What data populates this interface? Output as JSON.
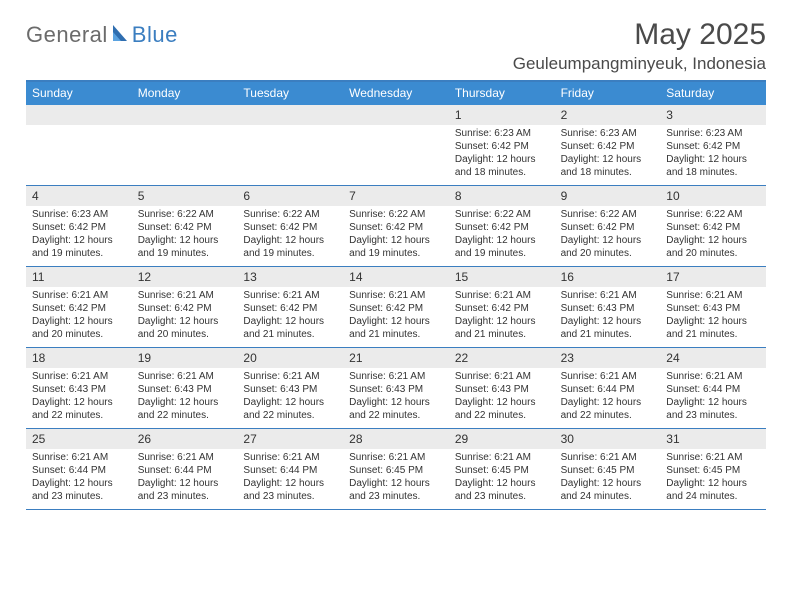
{
  "logo": {
    "text_general": "General",
    "text_blue": "Blue"
  },
  "title": "May 2025",
  "location": "Geuleumpangminyeuk, Indonesia",
  "colors": {
    "header_bar": "#3b8bd1",
    "rule": "#3b7ec0",
    "band": "#ebebeb",
    "text": "#333333",
    "logo_gray": "#6b6b6b",
    "logo_blue": "#3b7ec0",
    "background": "#ffffff"
  },
  "typography": {
    "title_fontsize": 30,
    "location_fontsize": 17,
    "weekday_fontsize": 12,
    "daynum_fontsize": 12,
    "body_fontsize": 10,
    "font_family": "Arial"
  },
  "weekdays": [
    "Sunday",
    "Monday",
    "Tuesday",
    "Wednesday",
    "Thursday",
    "Friday",
    "Saturday"
  ],
  "weeks": [
    [
      {
        "num": "",
        "sunrise": "",
        "sunset": "",
        "daylight1": "",
        "daylight2": ""
      },
      {
        "num": "",
        "sunrise": "",
        "sunset": "",
        "daylight1": "",
        "daylight2": ""
      },
      {
        "num": "",
        "sunrise": "",
        "sunset": "",
        "daylight1": "",
        "daylight2": ""
      },
      {
        "num": "",
        "sunrise": "",
        "sunset": "",
        "daylight1": "",
        "daylight2": ""
      },
      {
        "num": "1",
        "sunrise": "Sunrise: 6:23 AM",
        "sunset": "Sunset: 6:42 PM",
        "daylight1": "Daylight: 12 hours",
        "daylight2": "and 18 minutes."
      },
      {
        "num": "2",
        "sunrise": "Sunrise: 6:23 AM",
        "sunset": "Sunset: 6:42 PM",
        "daylight1": "Daylight: 12 hours",
        "daylight2": "and 18 minutes."
      },
      {
        "num": "3",
        "sunrise": "Sunrise: 6:23 AM",
        "sunset": "Sunset: 6:42 PM",
        "daylight1": "Daylight: 12 hours",
        "daylight2": "and 18 minutes."
      }
    ],
    [
      {
        "num": "4",
        "sunrise": "Sunrise: 6:23 AM",
        "sunset": "Sunset: 6:42 PM",
        "daylight1": "Daylight: 12 hours",
        "daylight2": "and 19 minutes."
      },
      {
        "num": "5",
        "sunrise": "Sunrise: 6:22 AM",
        "sunset": "Sunset: 6:42 PM",
        "daylight1": "Daylight: 12 hours",
        "daylight2": "and 19 minutes."
      },
      {
        "num": "6",
        "sunrise": "Sunrise: 6:22 AM",
        "sunset": "Sunset: 6:42 PM",
        "daylight1": "Daylight: 12 hours",
        "daylight2": "and 19 minutes."
      },
      {
        "num": "7",
        "sunrise": "Sunrise: 6:22 AM",
        "sunset": "Sunset: 6:42 PM",
        "daylight1": "Daylight: 12 hours",
        "daylight2": "and 19 minutes."
      },
      {
        "num": "8",
        "sunrise": "Sunrise: 6:22 AM",
        "sunset": "Sunset: 6:42 PM",
        "daylight1": "Daylight: 12 hours",
        "daylight2": "and 19 minutes."
      },
      {
        "num": "9",
        "sunrise": "Sunrise: 6:22 AM",
        "sunset": "Sunset: 6:42 PM",
        "daylight1": "Daylight: 12 hours",
        "daylight2": "and 20 minutes."
      },
      {
        "num": "10",
        "sunrise": "Sunrise: 6:22 AM",
        "sunset": "Sunset: 6:42 PM",
        "daylight1": "Daylight: 12 hours",
        "daylight2": "and 20 minutes."
      }
    ],
    [
      {
        "num": "11",
        "sunrise": "Sunrise: 6:21 AM",
        "sunset": "Sunset: 6:42 PM",
        "daylight1": "Daylight: 12 hours",
        "daylight2": "and 20 minutes."
      },
      {
        "num": "12",
        "sunrise": "Sunrise: 6:21 AM",
        "sunset": "Sunset: 6:42 PM",
        "daylight1": "Daylight: 12 hours",
        "daylight2": "and 20 minutes."
      },
      {
        "num": "13",
        "sunrise": "Sunrise: 6:21 AM",
        "sunset": "Sunset: 6:42 PM",
        "daylight1": "Daylight: 12 hours",
        "daylight2": "and 21 minutes."
      },
      {
        "num": "14",
        "sunrise": "Sunrise: 6:21 AM",
        "sunset": "Sunset: 6:42 PM",
        "daylight1": "Daylight: 12 hours",
        "daylight2": "and 21 minutes."
      },
      {
        "num": "15",
        "sunrise": "Sunrise: 6:21 AM",
        "sunset": "Sunset: 6:42 PM",
        "daylight1": "Daylight: 12 hours",
        "daylight2": "and 21 minutes."
      },
      {
        "num": "16",
        "sunrise": "Sunrise: 6:21 AM",
        "sunset": "Sunset: 6:43 PM",
        "daylight1": "Daylight: 12 hours",
        "daylight2": "and 21 minutes."
      },
      {
        "num": "17",
        "sunrise": "Sunrise: 6:21 AM",
        "sunset": "Sunset: 6:43 PM",
        "daylight1": "Daylight: 12 hours",
        "daylight2": "and 21 minutes."
      }
    ],
    [
      {
        "num": "18",
        "sunrise": "Sunrise: 6:21 AM",
        "sunset": "Sunset: 6:43 PM",
        "daylight1": "Daylight: 12 hours",
        "daylight2": "and 22 minutes."
      },
      {
        "num": "19",
        "sunrise": "Sunrise: 6:21 AM",
        "sunset": "Sunset: 6:43 PM",
        "daylight1": "Daylight: 12 hours",
        "daylight2": "and 22 minutes."
      },
      {
        "num": "20",
        "sunrise": "Sunrise: 6:21 AM",
        "sunset": "Sunset: 6:43 PM",
        "daylight1": "Daylight: 12 hours",
        "daylight2": "and 22 minutes."
      },
      {
        "num": "21",
        "sunrise": "Sunrise: 6:21 AM",
        "sunset": "Sunset: 6:43 PM",
        "daylight1": "Daylight: 12 hours",
        "daylight2": "and 22 minutes."
      },
      {
        "num": "22",
        "sunrise": "Sunrise: 6:21 AM",
        "sunset": "Sunset: 6:43 PM",
        "daylight1": "Daylight: 12 hours",
        "daylight2": "and 22 minutes."
      },
      {
        "num": "23",
        "sunrise": "Sunrise: 6:21 AM",
        "sunset": "Sunset: 6:44 PM",
        "daylight1": "Daylight: 12 hours",
        "daylight2": "and 22 minutes."
      },
      {
        "num": "24",
        "sunrise": "Sunrise: 6:21 AM",
        "sunset": "Sunset: 6:44 PM",
        "daylight1": "Daylight: 12 hours",
        "daylight2": "and 23 minutes."
      }
    ],
    [
      {
        "num": "25",
        "sunrise": "Sunrise: 6:21 AM",
        "sunset": "Sunset: 6:44 PM",
        "daylight1": "Daylight: 12 hours",
        "daylight2": "and 23 minutes."
      },
      {
        "num": "26",
        "sunrise": "Sunrise: 6:21 AM",
        "sunset": "Sunset: 6:44 PM",
        "daylight1": "Daylight: 12 hours",
        "daylight2": "and 23 minutes."
      },
      {
        "num": "27",
        "sunrise": "Sunrise: 6:21 AM",
        "sunset": "Sunset: 6:44 PM",
        "daylight1": "Daylight: 12 hours",
        "daylight2": "and 23 minutes."
      },
      {
        "num": "28",
        "sunrise": "Sunrise: 6:21 AM",
        "sunset": "Sunset: 6:45 PM",
        "daylight1": "Daylight: 12 hours",
        "daylight2": "and 23 minutes."
      },
      {
        "num": "29",
        "sunrise": "Sunrise: 6:21 AM",
        "sunset": "Sunset: 6:45 PM",
        "daylight1": "Daylight: 12 hours",
        "daylight2": "and 23 minutes."
      },
      {
        "num": "30",
        "sunrise": "Sunrise: 6:21 AM",
        "sunset": "Sunset: 6:45 PM",
        "daylight1": "Daylight: 12 hours",
        "daylight2": "and 24 minutes."
      },
      {
        "num": "31",
        "sunrise": "Sunrise: 6:21 AM",
        "sunset": "Sunset: 6:45 PM",
        "daylight1": "Daylight: 12 hours",
        "daylight2": "and 24 minutes."
      }
    ]
  ]
}
